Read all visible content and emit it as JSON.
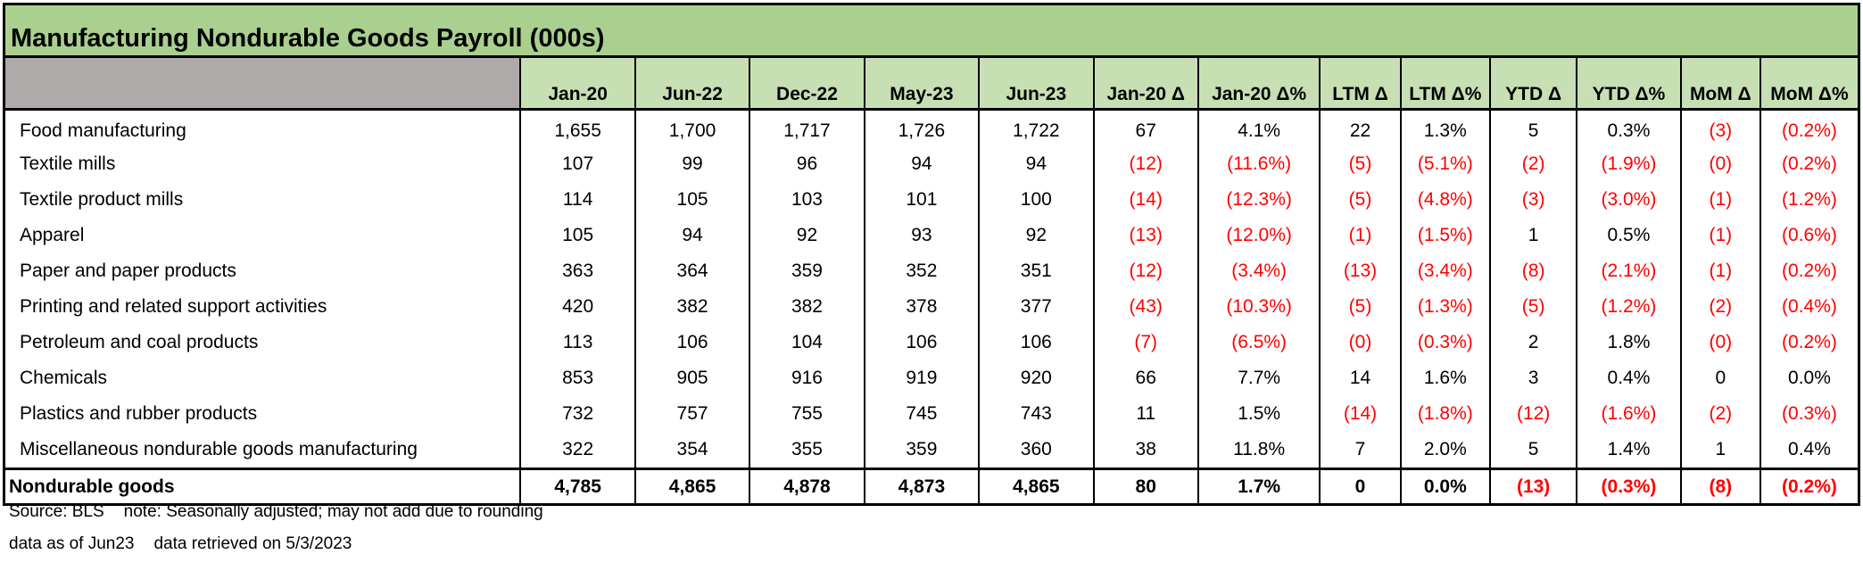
{
  "title": "Manufacturing Nondurable Goods Payroll (000s)",
  "columns": [
    "Jan-20",
    "Jun-22",
    "Dec-22",
    "May-23",
    "Jun-23",
    "Jan-20 Δ",
    "Jan-20 Δ%",
    "LTM Δ",
    "LTM Δ%",
    "YTD Δ",
    "YTD Δ%",
    "MoM Δ",
    "MoM Δ%"
  ],
  "rows": [
    {
      "label": "Food manufacturing",
      "values": [
        "1,655",
        "1,700",
        "1,717",
        "1,726",
        "1,722",
        "67",
        "4.1%",
        "22",
        "1.3%",
        "5",
        "0.3%",
        "(3)",
        "(0.2%)"
      ]
    },
    {
      "label": "Textile mills",
      "values": [
        "107",
        "99",
        "96",
        "94",
        "94",
        "(12)",
        "(11.6%)",
        "(5)",
        "(5.1%)",
        "(2)",
        "(1.9%)",
        "(0)",
        "(0.2%)"
      ]
    },
    {
      "label": "Textile product mills",
      "values": [
        "114",
        "105",
        "103",
        "101",
        "100",
        "(14)",
        "(12.3%)",
        "(5)",
        "(4.8%)",
        "(3)",
        "(3.0%)",
        "(1)",
        "(1.2%)"
      ]
    },
    {
      "label": "Apparel",
      "values": [
        "105",
        "94",
        "92",
        "93",
        "92",
        "(13)",
        "(12.0%)",
        "(1)",
        "(1.5%)",
        "1",
        "0.5%",
        "(1)",
        "(0.6%)"
      ]
    },
    {
      "label": "Paper and paper products",
      "values": [
        "363",
        "364",
        "359",
        "352",
        "351",
        "(12)",
        "(3.4%)",
        "(13)",
        "(3.4%)",
        "(8)",
        "(2.1%)",
        "(1)",
        "(0.2%)"
      ]
    },
    {
      "label": "Printing and related support activities",
      "values": [
        "420",
        "382",
        "382",
        "378",
        "377",
        "(43)",
        "(10.3%)",
        "(5)",
        "(1.3%)",
        "(5)",
        "(1.2%)",
        "(2)",
        "(0.4%)"
      ]
    },
    {
      "label": "Petroleum and coal products",
      "values": [
        "113",
        "106",
        "104",
        "106",
        "106",
        "(7)",
        "(6.5%)",
        "(0)",
        "(0.3%)",
        "2",
        "1.8%",
        "(0)",
        "(0.2%)"
      ]
    },
    {
      "label": "Chemicals",
      "values": [
        "853",
        "905",
        "916",
        "919",
        "920",
        "66",
        "7.7%",
        "14",
        "1.6%",
        "3",
        "0.4%",
        "0",
        "0.0%"
      ]
    },
    {
      "label": "Plastics and rubber products",
      "values": [
        "732",
        "757",
        "755",
        "745",
        "743",
        "11",
        "1.5%",
        "(14)",
        "(1.8%)",
        "(12)",
        "(1.6%)",
        "(2)",
        "(0.3%)"
      ]
    },
    {
      "label": "Miscellaneous nondurable goods manufacturing",
      "values": [
        "322",
        "354",
        "355",
        "359",
        "360",
        "38",
        "11.8%",
        "7",
        "2.0%",
        "5",
        "1.4%",
        "1",
        "0.4%"
      ]
    }
  ],
  "total": {
    "label": "Nondurable goods",
    "values": [
      "4,785",
      "4,865",
      "4,878",
      "4,873",
      "4,865",
      "80",
      "1.7%",
      "0",
      "0.0%",
      "(13)",
      "(0.3%)",
      "(8)",
      "(0.2%)"
    ]
  },
  "footer": {
    "source": "Source: BLS",
    "note": "note: Seasonally adjusted; may not add due to rounding",
    "data_as_of": "data as of Jun23",
    "retrieved": "data retrieved on 5/3/2023"
  },
  "colors": {
    "title_bg": "#a9d08e",
    "header_bg": "#c6e0b4",
    "blank_header_bg": "#aeaaaa",
    "negative": "#ff0000"
  }
}
